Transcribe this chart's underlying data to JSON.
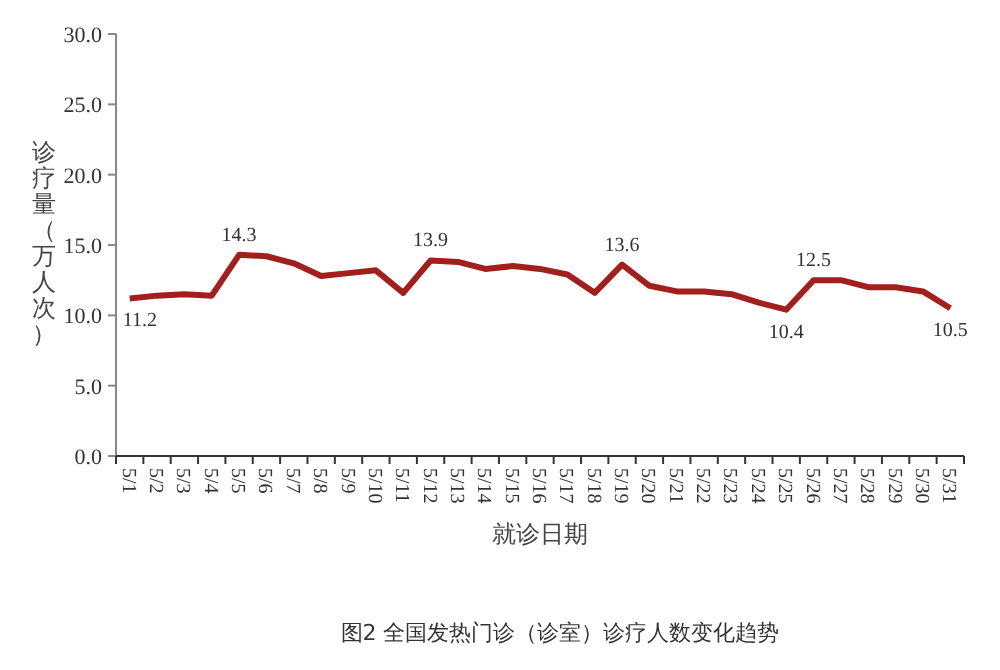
{
  "chart_data": {
    "type": "line",
    "xlabel": "就诊日期",
    "ylabel": "诊疗量（万人次）",
    "annotations": [
      "图2 全国发热门诊（诊室）诊疗人数变化趋势"
    ],
    "categories": [
      "5/1",
      "5/2",
      "5/3",
      "5/4",
      "5/5",
      "5/6",
      "5/7",
      "5/8",
      "5/9",
      "5/10",
      "5/11",
      "5/12",
      "5/13",
      "5/14",
      "5/15",
      "5/16",
      "5/17",
      "5/18",
      "5/19",
      "5/20",
      "5/21",
      "5/22",
      "5/23",
      "5/24",
      "5/25",
      "5/26",
      "5/27",
      "5/28",
      "5/29",
      "5/30",
      "5/31"
    ],
    "series": [
      {
        "color": "#a11f1c",
        "values": [
          11.2,
          11.4,
          11.5,
          11.4,
          14.3,
          14.2,
          13.7,
          12.8,
          13.0,
          13.2,
          11.6,
          13.9,
          13.8,
          13.3,
          13.5,
          13.3,
          12.9,
          11.6,
          13.6,
          12.1,
          11.7,
          11.7,
          11.5,
          10.9,
          10.4,
          12.5,
          12.5,
          12.0,
          12.0,
          11.7,
          10.5
        ],
        "value_labels": [
          "11.2",
          null,
          null,
          null,
          "14.3",
          null,
          null,
          null,
          null,
          null,
          null,
          "13.9",
          null,
          null,
          null,
          null,
          null,
          null,
          "13.6",
          null,
          null,
          null,
          null,
          null,
          "10.4",
          "12.5",
          null,
          null,
          null,
          null,
          "10.5"
        ]
      }
    ],
    "ylim": [
      0,
      30
    ],
    "yticks": [
      {
        "value": 0,
        "label": "0.0"
      },
      {
        "value": 5,
        "label": "5.0"
      },
      {
        "value": 10,
        "label": "10.0"
      },
      {
        "value": 15,
        "label": "15.0"
      },
      {
        "value": 20,
        "label": "20.0"
      },
      {
        "value": 25,
        "label": "25.0"
      },
      {
        "value": 30,
        "label": "30.0"
      }
    ]
  }
}
